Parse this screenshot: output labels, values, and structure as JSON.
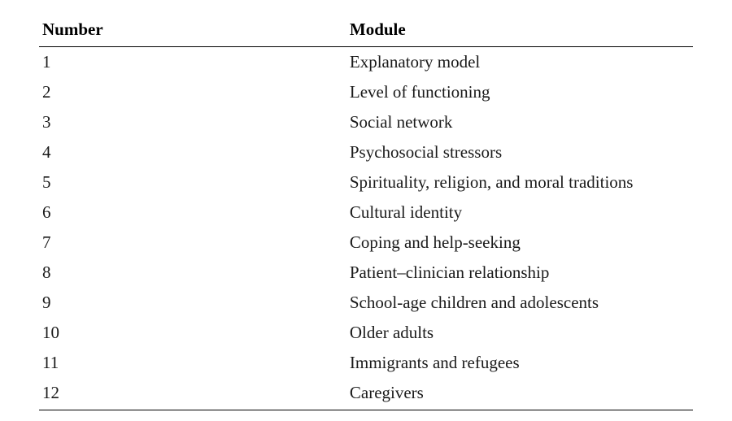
{
  "table": {
    "columns": [
      "Number",
      "Module"
    ],
    "rows": [
      [
        "1",
        "Explanatory model"
      ],
      [
        "2",
        "Level of functioning"
      ],
      [
        "3",
        "Social network"
      ],
      [
        "4",
        "Psychosocial stressors"
      ],
      [
        "5",
        "Spirituality, religion, and moral traditions"
      ],
      [
        "6",
        "Cultural identity"
      ],
      [
        "7",
        "Coping and help-seeking"
      ],
      [
        "8",
        "Patient–clinician relationship"
      ],
      [
        "9",
        "School-age children and adolescents"
      ],
      [
        "10",
        "Older adults"
      ],
      [
        "11",
        "Immigrants and refugees"
      ],
      [
        "12",
        "Caregivers"
      ]
    ],
    "header_fontsize": 21,
    "body_fontsize": 21,
    "text_color": "#000000",
    "border_color": "#000000",
    "font_family": "serif"
  }
}
